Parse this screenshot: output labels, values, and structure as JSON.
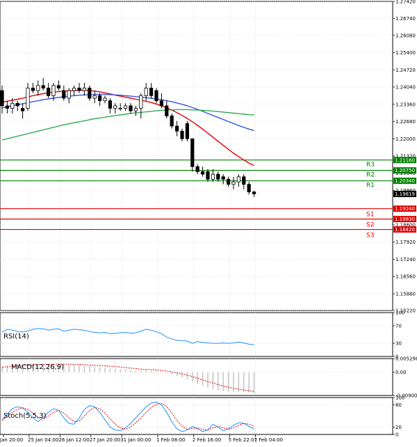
{
  "chart_data": [
    {
      "type": "candlestick",
      "title": "",
      "ylim": [
        1.1522,
        1.2742
      ],
      "yticks": [
        "1.27420",
        "1.26740",
        "1.26080",
        "1.25400",
        "1.24720",
        "1.24040",
        "1.23360",
        "1.22680",
        "1.22000",
        "1.21320",
        "1.20640",
        "1.19960",
        "1.19280",
        "1.18600",
        "1.17920",
        "1.17240",
        "1.16560",
        "1.15880",
        "1.15220"
      ],
      "xticks": [
        "Jan 20:00",
        "25 Jan 04:00",
        "26 Jan 12:00",
        "27 Jan 20:00",
        "31 Jan 00:00",
        "1 Feb 08:00",
        "2 Feb 16:00",
        "5 Feb 22:01",
        "7 Feb 04:00"
      ],
      "last_price": "1.19819",
      "levels": [
        {
          "name": "R3",
          "price": "1.21160",
          "value": 1.2116,
          "color": "#008000"
        },
        {
          "name": "R2",
          "price": "1.20750",
          "value": 1.2075,
          "color": "#008000"
        },
        {
          "name": "R1",
          "price": "1.20340",
          "value": 1.2034,
          "color": "#008000"
        },
        {
          "name": "S1",
          "price": "1.19240",
          "value": 1.1924,
          "color": "#dd0000"
        },
        {
          "name": "S2",
          "price": "1.18830",
          "value": 1.1883,
          "color": "#dd0000"
        },
        {
          "name": "S3",
          "price": "1.18420",
          "value": 1.1842,
          "color": "#dd0000"
        }
      ],
      "candles": [
        [
          1.239,
          1.241,
          1.23,
          1.233
        ],
        [
          1.233,
          1.235,
          1.23,
          1.232
        ],
        [
          1.232,
          1.236,
          1.23,
          1.234
        ],
        [
          1.234,
          1.235,
          1.231,
          1.233
        ],
        [
          1.232,
          1.234,
          1.228,
          1.231
        ],
        [
          1.232,
          1.242,
          1.231,
          1.24
        ],
        [
          1.24,
          1.242,
          1.238,
          1.239
        ],
        [
          1.239,
          1.243,
          1.237,
          1.241
        ],
        [
          1.241,
          1.244,
          1.239,
          1.24
        ],
        [
          1.24,
          1.242,
          1.236,
          1.237
        ],
        [
          1.237,
          1.242,
          1.235,
          1.241
        ],
        [
          1.241,
          1.243,
          1.239,
          1.24
        ],
        [
          1.239,
          1.241,
          1.235,
          1.236
        ],
        [
          1.236,
          1.24,
          1.234,
          1.239
        ],
        [
          1.239,
          1.241,
          1.237,
          1.24
        ],
        [
          1.24,
          1.242,
          1.238,
          1.239
        ],
        [
          1.239,
          1.242,
          1.237,
          1.24
        ],
        [
          1.24,
          1.241,
          1.235,
          1.236
        ],
        [
          1.236,
          1.239,
          1.234,
          1.237
        ],
        [
          1.237,
          1.238,
          1.233,
          1.235
        ],
        [
          1.235,
          1.237,
          1.234,
          1.236
        ],
        [
          1.235,
          1.236,
          1.23,
          1.232
        ],
        [
          1.232,
          1.234,
          1.23,
          1.233
        ],
        [
          1.232,
          1.234,
          1.231,
          1.232
        ],
        [
          1.232,
          1.234,
          1.231,
          1.233
        ],
        [
          1.233,
          1.234,
          1.23,
          1.231
        ],
        [
          1.231,
          1.233,
          1.229,
          1.232
        ],
        [
          1.232,
          1.238,
          1.228,
          1.237
        ],
        [
          1.237,
          1.242,
          1.235,
          1.24
        ],
        [
          1.24,
          1.242,
          1.236,
          1.237
        ],
        [
          1.239,
          1.24,
          1.234,
          1.235
        ],
        [
          1.235,
          1.238,
          1.232,
          1.233
        ],
        [
          1.233,
          1.235,
          1.228,
          1.229
        ],
        [
          1.229,
          1.23,
          1.224,
          1.225
        ],
        [
          1.225,
          1.227,
          1.221,
          1.223
        ],
        [
          1.223,
          1.224,
          1.219,
          1.22
        ],
        [
          1.226,
          1.227,
          1.219,
          1.22
        ],
        [
          1.22,
          1.22,
          1.207,
          1.209
        ],
        [
          1.209,
          1.21,
          1.206,
          1.207
        ],
        [
          1.207,
          1.209,
          1.205,
          1.206
        ],
        [
          1.207,
          1.208,
          1.203,
          1.204
        ],
        [
          1.204,
          1.208,
          1.203,
          1.206
        ],
        [
          1.206,
          1.207,
          1.203,
          1.204
        ],
        [
          1.205,
          1.206,
          1.202,
          1.204
        ],
        [
          1.204,
          1.205,
          1.201,
          1.202
        ],
        [
          1.202,
          1.205,
          1.2,
          1.203
        ],
        [
          1.203,
          1.206,
          1.201,
          1.205
        ],
        [
          1.205,
          1.206,
          1.2,
          1.202
        ],
        [
          1.202,
          1.203,
          1.198,
          1.199
        ],
        [
          1.199,
          1.1995,
          1.197,
          1.1982
        ]
      ],
      "moving_averages": [
        {
          "color": "#dd0000",
          "values": [
            1.2345,
            1.2348,
            1.2352,
            1.2356,
            1.236,
            1.2365,
            1.237,
            1.2374,
            1.2378,
            1.2381,
            1.2384,
            1.2386,
            1.2388,
            1.2389,
            1.239,
            1.2391,
            1.2391,
            1.239,
            1.2388,
            1.2385,
            1.2381,
            1.2377,
            1.2372,
            1.2368,
            1.2364,
            1.236,
            1.2356,
            1.2352,
            1.2348,
            1.2343,
            1.2337,
            1.233,
            1.2322,
            1.2313,
            1.2303,
            1.2292,
            1.228,
            1.2267,
            1.2253,
            1.2238,
            1.2222,
            1.2206,
            1.219,
            1.2174,
            1.2158,
            1.2143,
            1.2129,
            1.2116,
            1.2104,
            1.2094
          ]
        },
        {
          "color": "#3355dd",
          "values": [
            1.2322,
            1.2326,
            1.233,
            1.2334,
            1.2338,
            1.2342,
            1.2346,
            1.235,
            1.2354,
            1.2357,
            1.236,
            1.2363,
            1.2366,
            1.2368,
            1.237,
            1.2372,
            1.2373,
            1.2374,
            1.2375,
            1.2375,
            1.2375,
            1.2374,
            1.2373,
            1.2372,
            1.237,
            1.2368,
            1.2366,
            1.2364,
            1.2362,
            1.236,
            1.2357,
            1.2354,
            1.235,
            1.2346,
            1.2341,
            1.2336,
            1.233,
            1.2323,
            1.2316,
            1.2308,
            1.23,
            1.2292,
            1.2284,
            1.2276,
            1.2268,
            1.226,
            1.2252,
            1.2245,
            1.2238,
            1.2232
          ]
        },
        {
          "color": "#33aa55",
          "values": [
            1.2195,
            1.22,
            1.2205,
            1.221,
            1.2215,
            1.222,
            1.2225,
            1.223,
            1.2235,
            1.224,
            1.2245,
            1.225,
            1.2255,
            1.2259,
            1.2263,
            1.2267,
            1.2271,
            1.2275,
            1.2279,
            1.2282,
            1.2285,
            1.2288,
            1.2291,
            1.2294,
            1.2297,
            1.23,
            1.2302,
            1.2304,
            1.2306,
            1.2308,
            1.231,
            1.2312,
            1.2313,
            1.2314,
            1.2315,
            1.2315,
            1.2315,
            1.2314,
            1.2313,
            1.2312,
            1.2311,
            1.2309,
            1.2307,
            1.2305,
            1.2303,
            1.2301,
            1.2299,
            1.2297,
            1.2295,
            1.2294
          ]
        }
      ]
    },
    {
      "type": "line",
      "title": "RSI(14)",
      "ylim": [
        0,
        100
      ],
      "yticks": [
        "100",
        "70",
        "30",
        "0"
      ],
      "series": [
        {
          "color": "#1e90ff",
          "values": [
            55,
            62,
            60,
            57,
            56,
            58,
            62,
            64,
            63,
            60,
            62,
            63,
            58,
            60,
            62,
            61,
            60,
            57,
            55,
            54,
            55,
            52,
            53,
            54,
            55,
            53,
            54,
            58,
            62,
            60,
            56,
            52,
            44,
            40,
            37,
            36,
            35,
            30,
            34,
            32,
            31,
            30,
            30,
            31,
            30,
            31,
            33,
            31,
            28,
            27
          ]
        }
      ]
    },
    {
      "type": "bar",
      "title": "MACD(12,26,9)",
      "ylim": [
        -0.009005,
        0.005298
      ],
      "yticks": [
        "0.005298",
        "0.00",
        "-0.009005"
      ],
      "series": [
        {
          "name": "histogram",
          "color": "#c0c0c0",
          "values": [
            0.002,
            0.0025,
            0.0028,
            0.003,
            0.0032,
            0.0033,
            0.0034,
            0.0035,
            0.0035,
            0.0034,
            0.0033,
            0.0032,
            0.0031,
            0.003,
            0.0029,
            0.0028,
            0.0026,
            0.0024,
            0.0022,
            0.002,
            0.0018,
            0.0016,
            0.0014,
            0.0012,
            0.001,
            0.0008,
            0.0006,
            0.0006,
            0.0007,
            0.0006,
            0.0004,
            0.0001,
            -0.0003,
            -0.0008,
            -0.0014,
            -0.002,
            -0.0027,
            -0.0036,
            -0.0045,
            -0.0053,
            -0.006,
            -0.0066,
            -0.007,
            -0.0073,
            -0.0075,
            -0.0076,
            -0.0076,
            -0.0076,
            -0.0078,
            -0.0082
          ]
        },
        {
          "name": "signal",
          "color": "#dd0000",
          "values": [
            0.002,
            0.0021,
            0.0022,
            0.0024,
            0.0025,
            0.0027,
            0.0028,
            0.0029,
            0.003,
            0.003,
            0.0031,
            0.0031,
            0.0031,
            0.0031,
            0.003,
            0.003,
            0.0029,
            0.0028,
            0.0027,
            0.0026,
            0.0025,
            0.0023,
            0.0022,
            0.002,
            0.0018,
            0.0016,
            0.0014,
            0.0012,
            0.0011,
            0.001,
            0.0009,
            0.0007,
            0.0005,
            0.0002,
            -0.0002,
            -0.0006,
            -0.0011,
            -0.0017,
            -0.0023,
            -0.003,
            -0.0036,
            -0.0042,
            -0.0048,
            -0.0053,
            -0.0058,
            -0.0062,
            -0.0066,
            -0.0069,
            -0.0072,
            -0.0075
          ]
        }
      ]
    },
    {
      "type": "line",
      "title": "Stoch(5,5,3)",
      "ylim": [
        0,
        100
      ],
      "yticks": [
        "100",
        "80",
        "20",
        "0"
      ],
      "series": [
        {
          "name": "main",
          "color": "#1e90ff",
          "values": [
            40,
            55,
            70,
            75,
            72,
            60,
            45,
            35,
            45,
            60,
            70,
            65,
            45,
            30,
            28,
            45,
            68,
            78,
            75,
            60,
            40,
            20,
            12,
            10,
            18,
            30,
            45,
            60,
            75,
            85,
            88,
            80,
            60,
            35,
            15,
            8,
            12,
            22,
            15,
            8,
            12,
            28,
            20,
            10,
            15,
            25,
            32,
            30,
            22,
            15
          ]
        },
        {
          "name": "signal",
          "color": "#dd0000",
          "values": [
            38,
            48,
            60,
            68,
            72,
            68,
            58,
            46,
            42,
            50,
            60,
            65,
            58,
            45,
            35,
            36,
            50,
            65,
            73,
            70,
            58,
            42,
            28,
            18,
            14,
            20,
            32,
            45,
            60,
            73,
            82,
            84,
            76,
            58,
            38,
            22,
            14,
            16,
            18,
            14,
            12,
            18,
            22,
            18,
            14,
            18,
            25,
            30,
            28,
            22
          ]
        }
      ]
    }
  ]
}
